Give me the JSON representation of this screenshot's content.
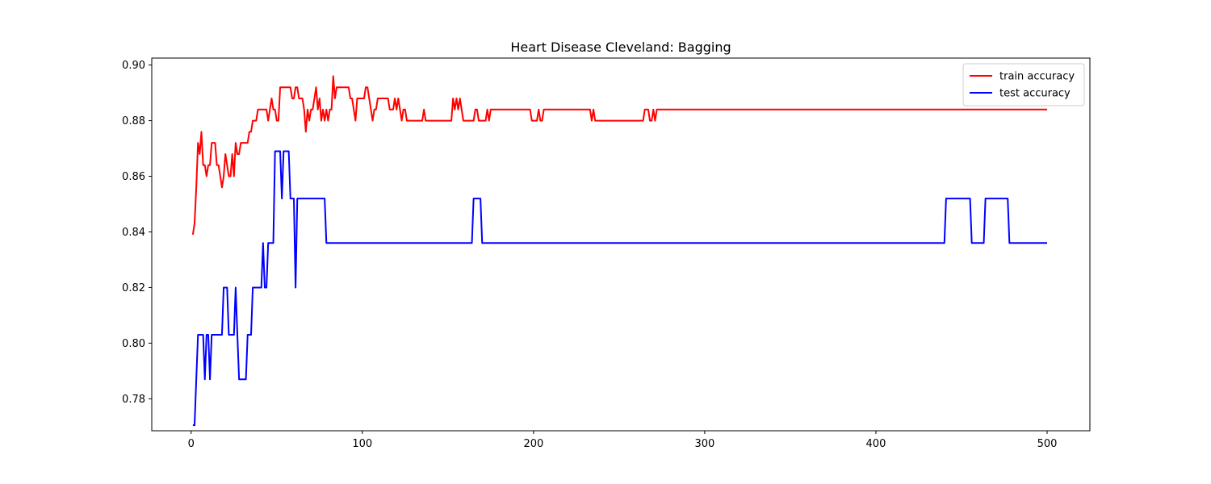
{
  "chart_data": {
    "type": "line",
    "title": "Heart Disease Cleveland: Bagging",
    "xlabel": "",
    "ylabel": "",
    "xlim": [
      -23,
      525
    ],
    "ylim": [
      0.7685,
      0.9025
    ],
    "xticks": [
      0,
      100,
      200,
      300,
      400,
      500
    ],
    "yticks": [
      0.78,
      0.8,
      0.82,
      0.84,
      0.86,
      0.88,
      0.9
    ],
    "grid": false,
    "legend_position": "top-right",
    "series": [
      {
        "name": "train accuracy",
        "color": "#ff0000",
        "points": [
          [
            1,
            0.839
          ],
          [
            2,
            0.843
          ],
          [
            3,
            0.856
          ],
          [
            4,
            0.872
          ],
          [
            5,
            0.868
          ],
          [
            6,
            0.876
          ],
          [
            7,
            0.864
          ],
          [
            8,
            0.864
          ],
          [
            9,
            0.86
          ],
          [
            10,
            0.864
          ],
          [
            11,
            0.864
          ],
          [
            12,
            0.872
          ],
          [
            13,
            0.872
          ],
          [
            14,
            0.872
          ],
          [
            15,
            0.864
          ],
          [
            16,
            0.864
          ],
          [
            17,
            0.86
          ],
          [
            18,
            0.856
          ],
          [
            19,
            0.86
          ],
          [
            20,
            0.868
          ],
          [
            21,
            0.864
          ],
          [
            22,
            0.86
          ],
          [
            23,
            0.86
          ],
          [
            24,
            0.868
          ],
          [
            25,
            0.86
          ],
          [
            26,
            0.872
          ],
          [
            27,
            0.868
          ],
          [
            28,
            0.868
          ],
          [
            29,
            0.872
          ],
          [
            30,
            0.872
          ],
          [
            32,
            0.872
          ],
          [
            33,
            0.872
          ],
          [
            34,
            0.876
          ],
          [
            35,
            0.876
          ],
          [
            36,
            0.88
          ],
          [
            38,
            0.88
          ],
          [
            39,
            0.884
          ],
          [
            40,
            0.884
          ],
          [
            42,
            0.884
          ],
          [
            44,
            0.884
          ],
          [
            45,
            0.88
          ],
          [
            46,
            0.884
          ],
          [
            47,
            0.888
          ],
          [
            48,
            0.884
          ],
          [
            49,
            0.884
          ],
          [
            50,
            0.88
          ],
          [
            51,
            0.88
          ],
          [
            52,
            0.892
          ],
          [
            54,
            0.892
          ],
          [
            56,
            0.892
          ],
          [
            58,
            0.892
          ],
          [
            59,
            0.888
          ],
          [
            60,
            0.888
          ],
          [
            61,
            0.892
          ],
          [
            62,
            0.892
          ],
          [
            63,
            0.888
          ],
          [
            64,
            0.888
          ],
          [
            65,
            0.888
          ],
          [
            66,
            0.884
          ],
          [
            67,
            0.876
          ],
          [
            68,
            0.884
          ],
          [
            69,
            0.88
          ],
          [
            70,
            0.884
          ],
          [
            71,
            0.884
          ],
          [
            72,
            0.888
          ],
          [
            73,
            0.892
          ],
          [
            74,
            0.884
          ],
          [
            75,
            0.888
          ],
          [
            76,
            0.88
          ],
          [
            77,
            0.884
          ],
          [
            78,
            0.88
          ],
          [
            79,
            0.884
          ],
          [
            80,
            0.88
          ],
          [
            81,
            0.884
          ],
          [
            82,
            0.884
          ],
          [
            83,
            0.896
          ],
          [
            84,
            0.888
          ],
          [
            85,
            0.892
          ],
          [
            86,
            0.892
          ],
          [
            88,
            0.892
          ],
          [
            90,
            0.892
          ],
          [
            92,
            0.892
          ],
          [
            93,
            0.888
          ],
          [
            94,
            0.888
          ],
          [
            95,
            0.884
          ],
          [
            96,
            0.88
          ],
          [
            97,
            0.888
          ],
          [
            100,
            0.888
          ],
          [
            101,
            0.888
          ],
          [
            102,
            0.892
          ],
          [
            103,
            0.892
          ],
          [
            104,
            0.888
          ],
          [
            105,
            0.884
          ],
          [
            106,
            0.88
          ],
          [
            107,
            0.884
          ],
          [
            108,
            0.884
          ],
          [
            109,
            0.888
          ],
          [
            112,
            0.888
          ],
          [
            115,
            0.888
          ],
          [
            116,
            0.884
          ],
          [
            118,
            0.884
          ],
          [
            119,
            0.888
          ],
          [
            120,
            0.884
          ],
          [
            121,
            0.888
          ],
          [
            122,
            0.884
          ],
          [
            123,
            0.88
          ],
          [
            124,
            0.884
          ],
          [
            125,
            0.884
          ],
          [
            126,
            0.88
          ],
          [
            130,
            0.88
          ],
          [
            134,
            0.88
          ],
          [
            135,
            0.88
          ],
          [
            136,
            0.884
          ],
          [
            137,
            0.88
          ],
          [
            140,
            0.88
          ],
          [
            145,
            0.88
          ],
          [
            150,
            0.88
          ],
          [
            152,
            0.88
          ],
          [
            153,
            0.888
          ],
          [
            154,
            0.884
          ],
          [
            155,
            0.888
          ],
          [
            156,
            0.884
          ],
          [
            157,
            0.888
          ],
          [
            158,
            0.884
          ],
          [
            159,
            0.88
          ],
          [
            162,
            0.88
          ],
          [
            165,
            0.88
          ],
          [
            166,
            0.884
          ],
          [
            167,
            0.884
          ],
          [
            168,
            0.88
          ],
          [
            170,
            0.88
          ],
          [
            172,
            0.88
          ],
          [
            173,
            0.884
          ],
          [
            174,
            0.88
          ],
          [
            175,
            0.884
          ],
          [
            180,
            0.884
          ],
          [
            190,
            0.884
          ],
          [
            198,
            0.884
          ],
          [
            199,
            0.88
          ],
          [
            202,
            0.88
          ],
          [
            203,
            0.884
          ],
          [
            204,
            0.88
          ],
          [
            205,
            0.88
          ],
          [
            206,
            0.884
          ],
          [
            210,
            0.884
          ],
          [
            220,
            0.884
          ],
          [
            232,
            0.884
          ],
          [
            233,
            0.884
          ],
          [
            234,
            0.88
          ],
          [
            235,
            0.884
          ],
          [
            236,
            0.88
          ],
          [
            240,
            0.88
          ],
          [
            250,
            0.88
          ],
          [
            260,
            0.88
          ],
          [
            264,
            0.88
          ],
          [
            265,
            0.884
          ],
          [
            267,
            0.884
          ],
          [
            268,
            0.88
          ],
          [
            269,
            0.88
          ],
          [
            270,
            0.884
          ],
          [
            271,
            0.88
          ],
          [
            272,
            0.884
          ],
          [
            300,
            0.884
          ],
          [
            350,
            0.884
          ],
          [
            400,
            0.884
          ],
          [
            450,
            0.884
          ],
          [
            500,
            0.884
          ]
        ]
      },
      {
        "name": "test accuracy",
        "color": "#0000ff",
        "points": [
          [
            1,
            0.7705
          ],
          [
            2,
            0.7705
          ],
          [
            3,
            0.787
          ],
          [
            4,
            0.803
          ],
          [
            5,
            0.803
          ],
          [
            6,
            0.803
          ],
          [
            7,
            0.803
          ],
          [
            8,
            0.787
          ],
          [
            9,
            0.803
          ],
          [
            10,
            0.803
          ],
          [
            11,
            0.787
          ],
          [
            12,
            0.803
          ],
          [
            13,
            0.803
          ],
          [
            14,
            0.803
          ],
          [
            15,
            0.803
          ],
          [
            16,
            0.803
          ],
          [
            17,
            0.803
          ],
          [
            18,
            0.803
          ],
          [
            19,
            0.82
          ],
          [
            20,
            0.82
          ],
          [
            21,
            0.82
          ],
          [
            22,
            0.803
          ],
          [
            23,
            0.803
          ],
          [
            24,
            0.803
          ],
          [
            25,
            0.803
          ],
          [
            26,
            0.82
          ],
          [
            27,
            0.803
          ],
          [
            28,
            0.787
          ],
          [
            29,
            0.787
          ],
          [
            30,
            0.787
          ],
          [
            31,
            0.787
          ],
          [
            32,
            0.787
          ],
          [
            33,
            0.803
          ],
          [
            34,
            0.803
          ],
          [
            35,
            0.803
          ],
          [
            36,
            0.82
          ],
          [
            37,
            0.82
          ],
          [
            38,
            0.82
          ],
          [
            39,
            0.82
          ],
          [
            40,
            0.82
          ],
          [
            41,
            0.82
          ],
          [
            42,
            0.836
          ],
          [
            43,
            0.82
          ],
          [
            44,
            0.82
          ],
          [
            45,
            0.836
          ],
          [
            46,
            0.836
          ],
          [
            47,
            0.836
          ],
          [
            48,
            0.836
          ],
          [
            49,
            0.869
          ],
          [
            50,
            0.869
          ],
          [
            51,
            0.869
          ],
          [
            52,
            0.869
          ],
          [
            53,
            0.852
          ],
          [
            54,
            0.869
          ],
          [
            55,
            0.869
          ],
          [
            56,
            0.869
          ],
          [
            57,
            0.869
          ],
          [
            58,
            0.852
          ],
          [
            59,
            0.852
          ],
          [
            60,
            0.852
          ],
          [
            61,
            0.82
          ],
          [
            62,
            0.852
          ],
          [
            63,
            0.852
          ],
          [
            70,
            0.852
          ],
          [
            78,
            0.852
          ],
          [
            79,
            0.836
          ],
          [
            100,
            0.836
          ],
          [
            150,
            0.836
          ],
          [
            164,
            0.836
          ],
          [
            165,
            0.852
          ],
          [
            169,
            0.852
          ],
          [
            170,
            0.836
          ],
          [
            200,
            0.836
          ],
          [
            300,
            0.836
          ],
          [
            400,
            0.836
          ],
          [
            440,
            0.836
          ],
          [
            441,
            0.852
          ],
          [
            455,
            0.852
          ],
          [
            456,
            0.836
          ],
          [
            463,
            0.836
          ],
          [
            464,
            0.852
          ],
          [
            477,
            0.852
          ],
          [
            478,
            0.836
          ],
          [
            500,
            0.836
          ]
        ]
      }
    ]
  }
}
